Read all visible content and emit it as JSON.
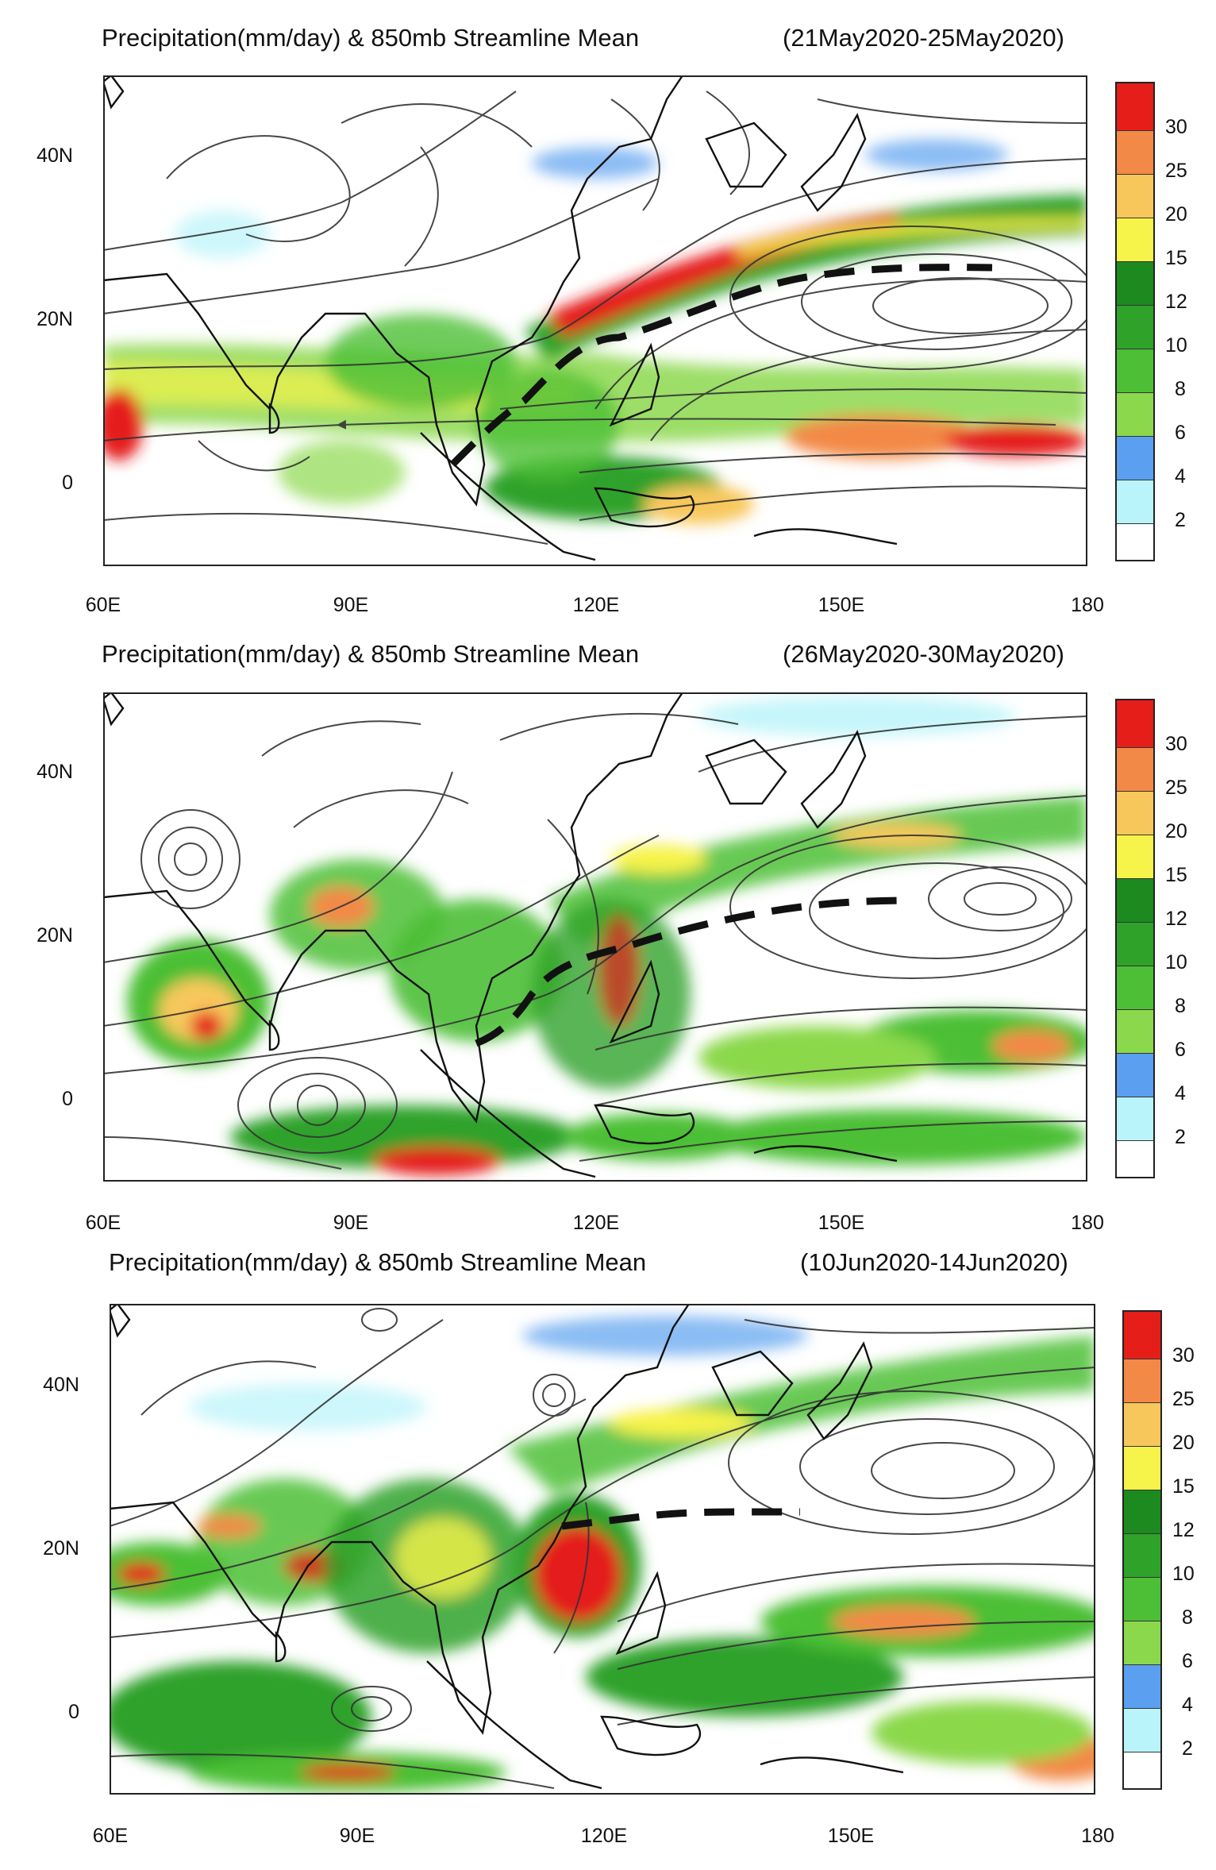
{
  "colors": {
    "scale": [
      "#ffffff",
      "#b8f4f9",
      "#5a9ff0",
      "#8bd84c",
      "#4cbf36",
      "#2fa22a",
      "#1c8a1f",
      "#f6f34a",
      "#f7c75c",
      "#f38947",
      "#e51e1a"
    ],
    "map_bg": "#ffffff",
    "coast": "#111111",
    "stream": "#333333"
  },
  "panels": [
    {
      "title": "Precipitation(mm/day) & 850mb Streamline Mean",
      "period": "(21May2020-25May2020)",
      "y_labels": [
        "40N",
        "20N",
        "0"
      ],
      "x_labels": [
        "60E",
        "90E",
        "120E",
        "150E",
        "180"
      ],
      "colorbar_labels": [
        "30",
        "25",
        "20",
        "15",
        "12",
        "10",
        "8",
        "6",
        "4",
        "2"
      ]
    },
    {
      "title": "Precipitation(mm/day) & 850mb Streamline Mean",
      "period": "(26May2020-30May2020)",
      "y_labels": [
        "40N",
        "20N",
        "0"
      ],
      "x_labels": [
        "60E",
        "90E",
        "120E",
        "150E",
        "180"
      ],
      "colorbar_labels": [
        "30",
        "25",
        "20",
        "15",
        "12",
        "10",
        "8",
        "6",
        "4",
        "2"
      ]
    },
    {
      "title": "Precipitation(mm/day) & 850mb Streamline Mean",
      "period": "(10Jun2020-14Jun2020)",
      "y_labels": [
        "40N",
        "20N",
        "0"
      ],
      "x_labels": [
        "60E",
        "90E",
        "120E",
        "150E",
        "180"
      ],
      "colorbar_labels": [
        "30",
        "25",
        "20",
        "15",
        "12",
        "10",
        "8",
        "6",
        "4",
        "2"
      ]
    }
  ]
}
